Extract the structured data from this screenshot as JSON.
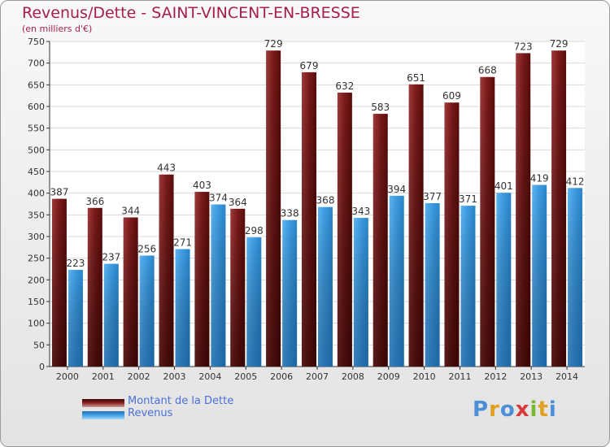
{
  "chart_data": {
    "type": "bar",
    "title": "Revenus/Dette - SAINT-VINCENT-EN-BRESSE",
    "subtitle": "(en milliers d'€)",
    "categories": [
      "2000",
      "2001",
      "2002",
      "2003",
      "2004",
      "2005",
      "2006",
      "2007",
      "2008",
      "2009",
      "2010",
      "2011",
      "2012",
      "2013",
      "2014"
    ],
    "series": [
      {
        "name": "Montant de la Dette",
        "color": "#8b1a1a",
        "values": [
          387,
          366,
          344,
          443,
          403,
          364,
          729,
          679,
          632,
          583,
          651,
          609,
          668,
          723,
          729
        ]
      },
      {
        "name": "Revenus",
        "color": "#3d9be0",
        "values": [
          223,
          237,
          256,
          271,
          374,
          298,
          338,
          368,
          343,
          394,
          377,
          371,
          401,
          419,
          412
        ]
      }
    ],
    "ylim": [
      0,
      750
    ],
    "yticks": [
      0,
      50,
      100,
      150,
      200,
      250,
      300,
      350,
      400,
      450,
      500,
      550,
      600,
      650,
      700,
      750
    ],
    "grid": true,
    "legend_position": "bottom-left"
  },
  "logo": {
    "text": "Proxiti"
  }
}
